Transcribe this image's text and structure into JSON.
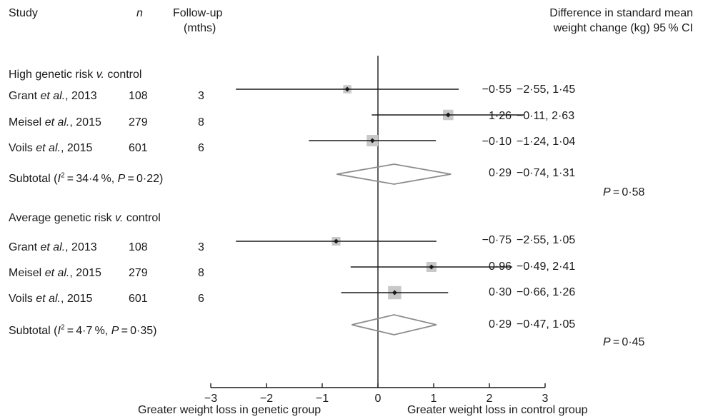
{
  "header": {
    "study": "Study",
    "n": "n",
    "followup_line1": "Follow-up",
    "followup_line2": "(mths)",
    "effect_line1": "Difference in standard mean",
    "effect_line2": "weight change  (kg) 95 % CI"
  },
  "groups": [
    {
      "title_pre": "High genetic risk ",
      "title_italic": "v.",
      "title_post": " control",
      "studies": [
        {
          "author": "Grant",
          "etal": "et al.",
          "year": ", 2013",
          "n": "108",
          "followup": "3",
          "est_text": "−0·55",
          "ci_text": "−2·55, 1·45"
        },
        {
          "author": "Meisel",
          "etal": "et al.",
          "year": ", 2015",
          "n": "279",
          "followup": "8",
          "est_text": "1·26",
          "ci_text": "−0·11, 2·63"
        },
        {
          "author": "Voils",
          "etal": "et al.",
          "year": ", 2015",
          "n": "601",
          "followup": "6",
          "est_text": "−0·10",
          "ci_text": "−1·24, 1·04"
        }
      ],
      "subtotal": {
        "label": "Subtotal (",
        "i2_label": "I",
        "i2_eq": " = 34·4 %, ",
        "p_label": "P",
        "p_eq": " = 0·22)",
        "est_text": "0·29",
        "ci_text": "−0·74, 1·31",
        "pval_label": "P",
        "pval_eq": " = 0·58"
      }
    },
    {
      "title_pre": "Average genetic risk ",
      "title_italic": "v.",
      "title_post": " control",
      "studies": [
        {
          "author": "Grant",
          "etal": "et al.",
          "year": ", 2013",
          "n": "108",
          "followup": "3",
          "est_text": "−0·75",
          "ci_text": "−2·55, 1·05"
        },
        {
          "author": "Meisel",
          "etal": "et al.",
          "year": ", 2015",
          "n": "279",
          "followup": "8",
          "est_text": "0·96",
          "ci_text": "−0·49, 2·41"
        },
        {
          "author": "Voils",
          "etal": "et al.",
          "year": ", 2015",
          "n": "601",
          "followup": "6",
          "est_text": "0·30",
          "ci_text": "−0·66, 1·26"
        }
      ],
      "subtotal": {
        "label": "Subtotal (",
        "i2_label": "I",
        "i2_eq": " = 4·7 %, ",
        "p_label": "P",
        "p_eq": " = 0·35)",
        "est_text": "0·29",
        "ci_text": "−0·47, 1·05",
        "pval_label": "P",
        "pval_eq": " = 0·45"
      }
    }
  ],
  "footer": {
    "left_label": "Greater weight loss in genetic group",
    "right_label": "Greater weight loss in control group"
  },
  "chart_data": {
    "type": "forest",
    "xlim": [
      -3,
      3
    ],
    "ticks": [
      -3,
      -2,
      -1,
      0,
      1,
      2,
      3
    ],
    "tick_labels": [
      "−3",
      "−2",
      "−1",
      "0",
      "1",
      "2",
      "3"
    ],
    "null_line": 0,
    "colors": {
      "line": "#1a1a1a",
      "weight_box": "#c8c8c8",
      "diamond": "#8c8c8c"
    },
    "studies": [
      {
        "group": 0,
        "est": -0.55,
        "lo": -2.55,
        "hi": 1.45,
        "weight": 0.55
      },
      {
        "group": 0,
        "est": 1.26,
        "lo": -0.11,
        "hi": 2.63,
        "weight": 0.85
      },
      {
        "group": 0,
        "est": -0.1,
        "lo": -1.24,
        "hi": 1.04,
        "weight": 1.0
      },
      {
        "group": 1,
        "est": -0.75,
        "lo": -2.55,
        "hi": 1.05,
        "weight": 0.6
      },
      {
        "group": 1,
        "est": 0.96,
        "lo": -0.49,
        "hi": 2.41,
        "weight": 0.8
      },
      {
        "group": 1,
        "est": 0.3,
        "lo": -0.66,
        "hi": 1.26,
        "weight": 1.25
      }
    ],
    "subtotals": [
      {
        "group": 0,
        "est": 0.29,
        "lo": -0.74,
        "hi": 1.31
      },
      {
        "group": 1,
        "est": 0.29,
        "lo": -0.47,
        "hi": 1.05
      }
    ]
  }
}
